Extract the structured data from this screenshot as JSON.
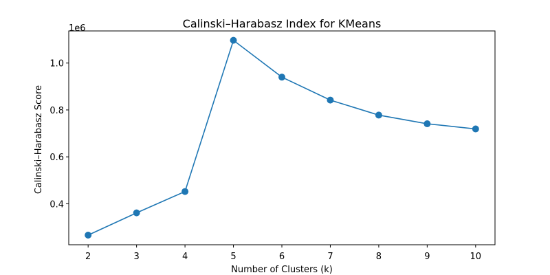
{
  "chart_data": {
    "type": "line",
    "title": "Calinski–Harabasz Index for KMeans",
    "xlabel": "Number of Clusters (k)",
    "ylabel": "Calinski–Harabasz Score",
    "y_offset_label": "1e6",
    "x": [
      2,
      3,
      4,
      5,
      6,
      7,
      8,
      9,
      10
    ],
    "series": [
      {
        "values": [
          266000,
          361000,
          452000,
          1097000,
          940000,
          842000,
          778000,
          741000,
          719000
        ]
      }
    ],
    "xlim": [
      1.6,
      10.4
    ],
    "ylim": [
      225000,
      1137000
    ],
    "x_ticks": [
      2,
      3,
      4,
      5,
      6,
      7,
      8,
      9,
      10
    ],
    "y_ticks": [
      400000,
      600000,
      800000,
      1000000
    ],
    "y_tick_labels": [
      "0.4",
      "0.6",
      "0.8",
      "1.0"
    ],
    "grid": false,
    "line_color": "#1f77b4",
    "marker": "circle"
  }
}
